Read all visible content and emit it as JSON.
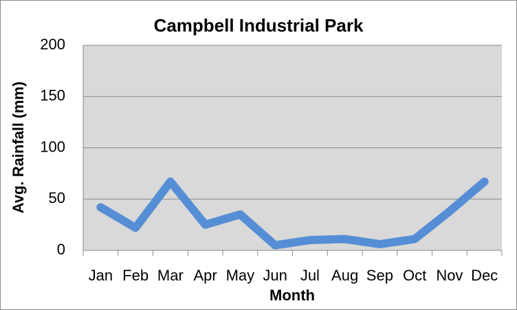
{
  "chart_data": {
    "type": "line",
    "title": "Campbell Industrial Park",
    "x_label": "Month",
    "y_label": "Avg. Rainfall  (mm)",
    "categories": [
      "Jan",
      "Feb",
      "Mar",
      "Apr",
      "May",
      "Jun",
      "Jul",
      "Aug",
      "Sep",
      "Oct",
      "Nov",
      "Dec"
    ],
    "series": [
      {
        "name": "Avg. Rainfall",
        "color": "#558ed5",
        "values": [
          42,
          22,
          67,
          25,
          35,
          5,
          10,
          11,
          6,
          11,
          38,
          67
        ]
      }
    ],
    "ylim": [
      0,
      200
    ],
    "yticks": [
      0,
      50,
      100,
      150,
      200
    ],
    "grid": true
  }
}
